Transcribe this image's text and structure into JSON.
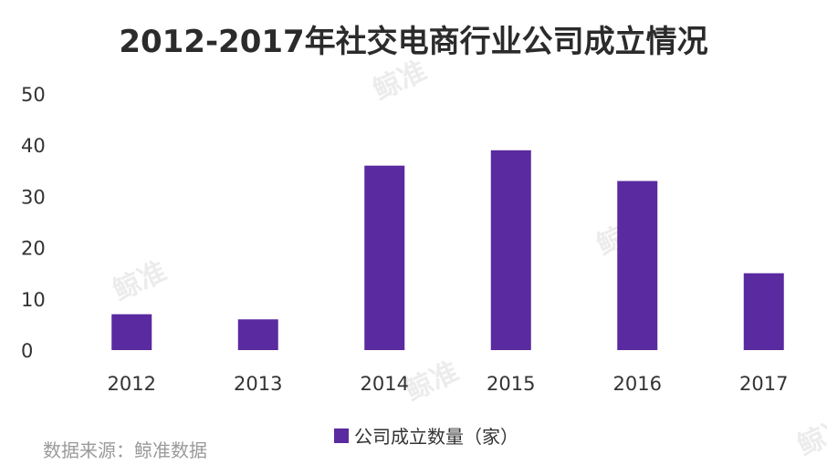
{
  "chart_data": {
    "type": "bar",
    "title": "2012-2017年社交电商行业公司成立情况",
    "categories": [
      "2012",
      "2013",
      "2014",
      "2015",
      "2016",
      "2017"
    ],
    "series": [
      {
        "name": "公司成立数量（家）",
        "values": [
          7,
          6,
          36,
          39,
          33,
          15
        ],
        "color": "#5a2aa0"
      }
    ],
    "ylim": [
      0,
      50
    ],
    "yticks": [
      0,
      10,
      20,
      30,
      40,
      50
    ],
    "grid": false,
    "legend": "bottom-center"
  },
  "source": "数据来源：鲸准数据",
  "watermark": "鲸准"
}
